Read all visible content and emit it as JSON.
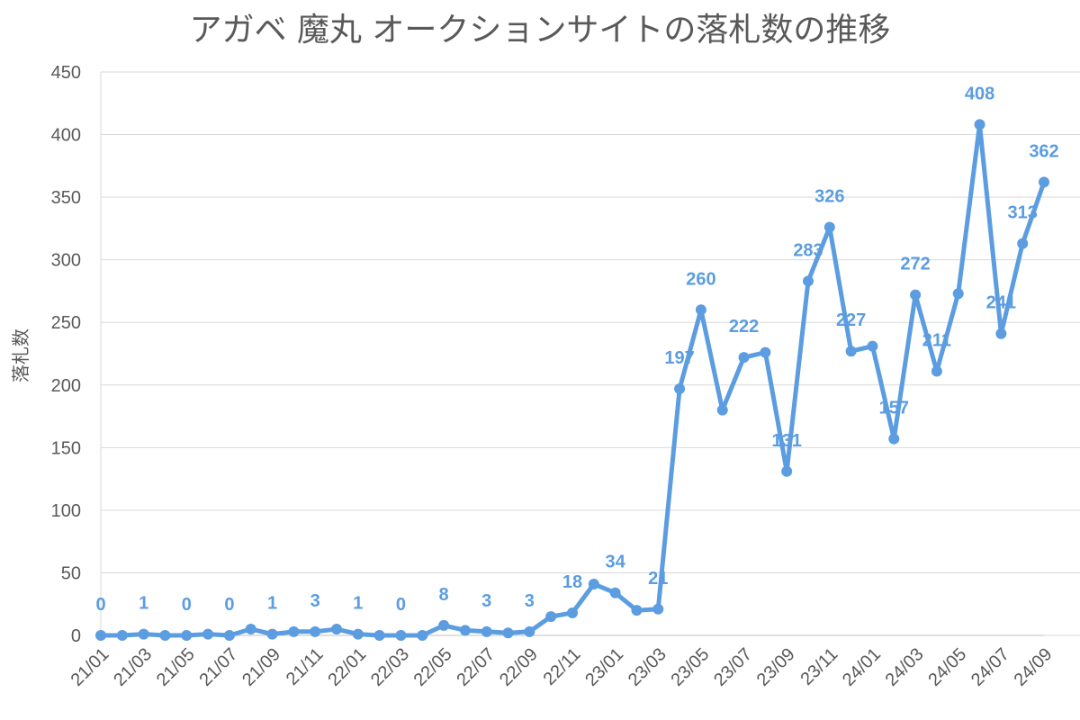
{
  "chart_data": {
    "type": "line",
    "title": "アガベ 魔丸 オークションサイトの落札数の推移",
    "xlabel": "",
    "ylabel": "落札数",
    "ylim": [
      0,
      450
    ],
    "yticks": [
      0,
      50,
      100,
      150,
      200,
      250,
      300,
      350,
      400,
      450
    ],
    "grid": true,
    "legend": "none",
    "color": "#5b9de0",
    "categories": [
      "21/01",
      "21/02",
      "21/03",
      "21/04",
      "21/05",
      "21/06",
      "21/07",
      "21/08",
      "21/09",
      "21/10",
      "21/11",
      "21/12",
      "22/01",
      "22/02",
      "22/03",
      "22/04",
      "22/05",
      "22/06",
      "22/07",
      "22/08",
      "22/09",
      "22/10",
      "22/11",
      "22/12",
      "23/01",
      "23/02",
      "23/03",
      "23/04",
      "23/05",
      "23/06",
      "23/07",
      "23/08",
      "23/09",
      "23/10",
      "23/11",
      "23/12",
      "24/01",
      "24/02",
      "24/03",
      "24/04",
      "24/05",
      "24/06",
      "24/07",
      "24/08",
      "24/09"
    ],
    "tick_labels": [
      "21/01",
      "21/03",
      "21/05",
      "21/07",
      "21/09",
      "21/11",
      "22/01",
      "22/03",
      "22/05",
      "22/07",
      "22/09",
      "22/11",
      "23/01",
      "23/03",
      "23/05",
      "23/07",
      "23/09",
      "23/11",
      "24/01",
      "24/03",
      "24/05",
      "24/07",
      "24/09"
    ],
    "series": [
      {
        "name": "落札数",
        "values": [
          0,
          0,
          1,
          0,
          0,
          1,
          0,
          5,
          1,
          3,
          3,
          5,
          1,
          0,
          0,
          0,
          8,
          4,
          3,
          2,
          3,
          15,
          18,
          41,
          34,
          20,
          21,
          197,
          260,
          180,
          222,
          226,
          131,
          283,
          326,
          227,
          231,
          157,
          272,
          211,
          273,
          408,
          241,
          313,
          362
        ]
      }
    ],
    "data_labels": [
      {
        "index": 0,
        "text": "0"
      },
      {
        "index": 2,
        "text": "1"
      },
      {
        "index": 4,
        "text": "0"
      },
      {
        "index": 6,
        "text": "0"
      },
      {
        "index": 8,
        "text": "1"
      },
      {
        "index": 10,
        "text": "3"
      },
      {
        "index": 12,
        "text": "1"
      },
      {
        "index": 14,
        "text": "0"
      },
      {
        "index": 16,
        "text": "8"
      },
      {
        "index": 18,
        "text": "3"
      },
      {
        "index": 20,
        "text": "3"
      },
      {
        "index": 22,
        "text": "18"
      },
      {
        "index": 24,
        "text": "34"
      },
      {
        "index": 26,
        "text": "21"
      },
      {
        "index": 27,
        "text": "197"
      },
      {
        "index": 28,
        "text": "260"
      },
      {
        "index": 30,
        "text": "222"
      },
      {
        "index": 32,
        "text": "131"
      },
      {
        "index": 33,
        "text": "283"
      },
      {
        "index": 34,
        "text": "326"
      },
      {
        "index": 35,
        "text": "227"
      },
      {
        "index": 37,
        "text": "157"
      },
      {
        "index": 38,
        "text": "272"
      },
      {
        "index": 39,
        "text": "211"
      },
      {
        "index": 41,
        "text": "408"
      },
      {
        "index": 42,
        "text": "241"
      },
      {
        "index": 43,
        "text": "313"
      },
      {
        "index": 44,
        "text": "362"
      }
    ]
  }
}
